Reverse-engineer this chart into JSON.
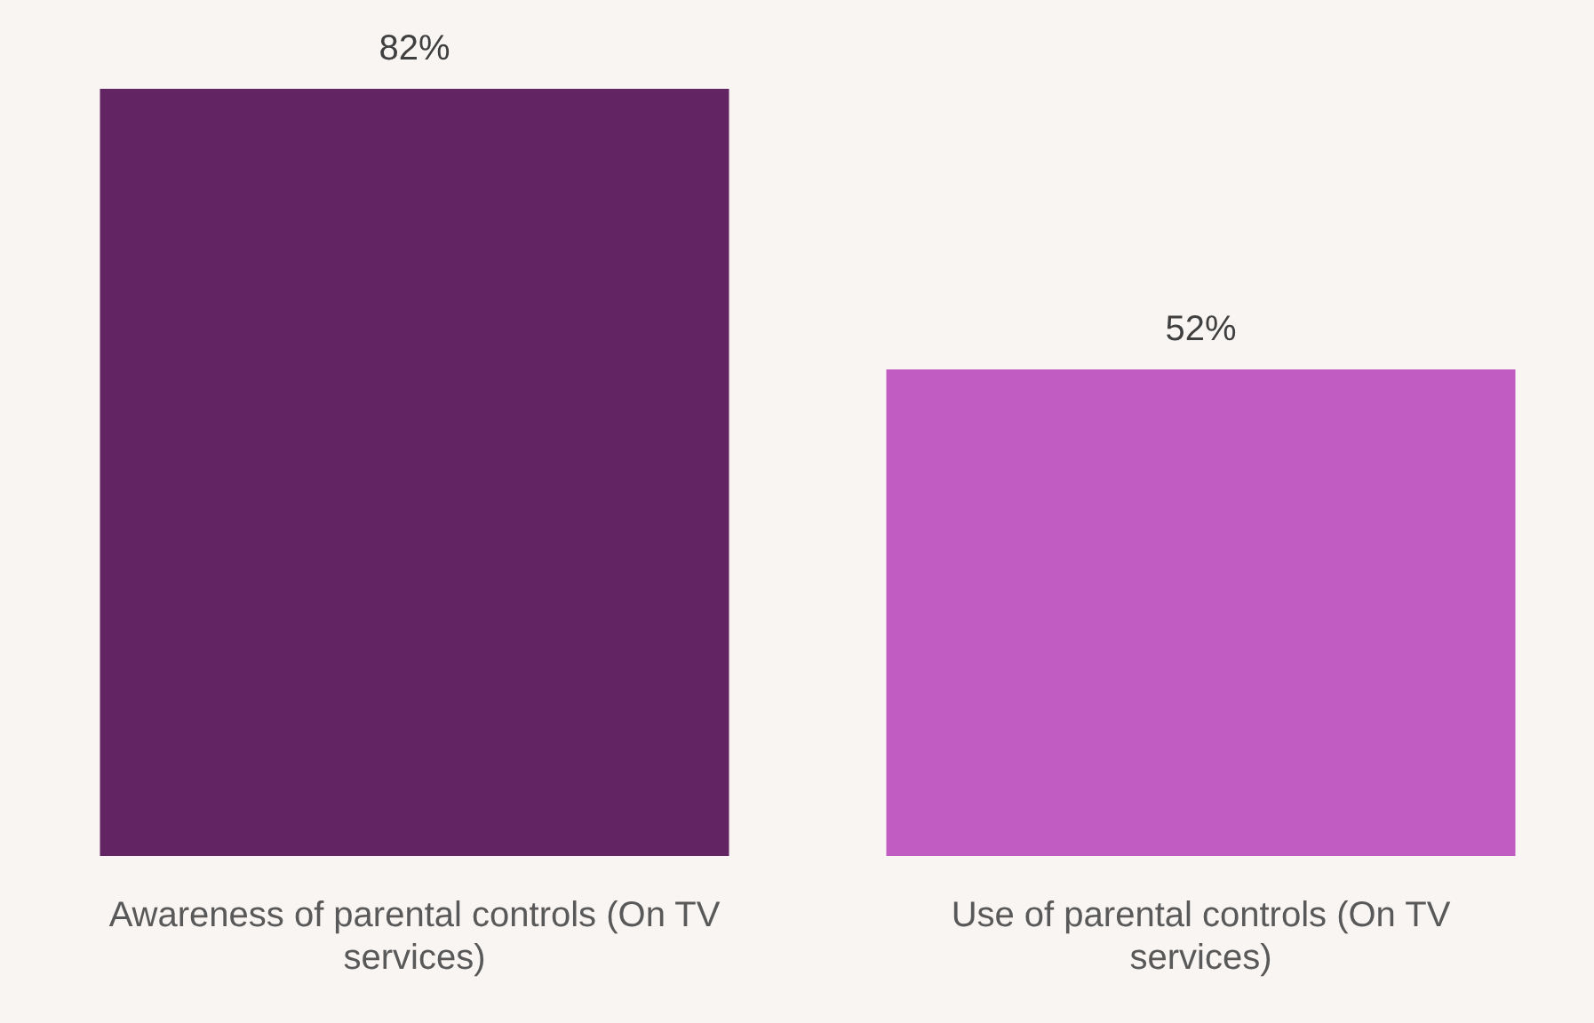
{
  "chart_data": {
    "type": "bar",
    "categories": [
      "Awareness of parental controls (On TV services)",
      "Use of parental controls (On TV services)"
    ],
    "values": [
      82,
      52
    ],
    "colors": [
      "#622463",
      "#c05cc2"
    ],
    "value_labels": [
      "82%",
      "52%"
    ]
  }
}
